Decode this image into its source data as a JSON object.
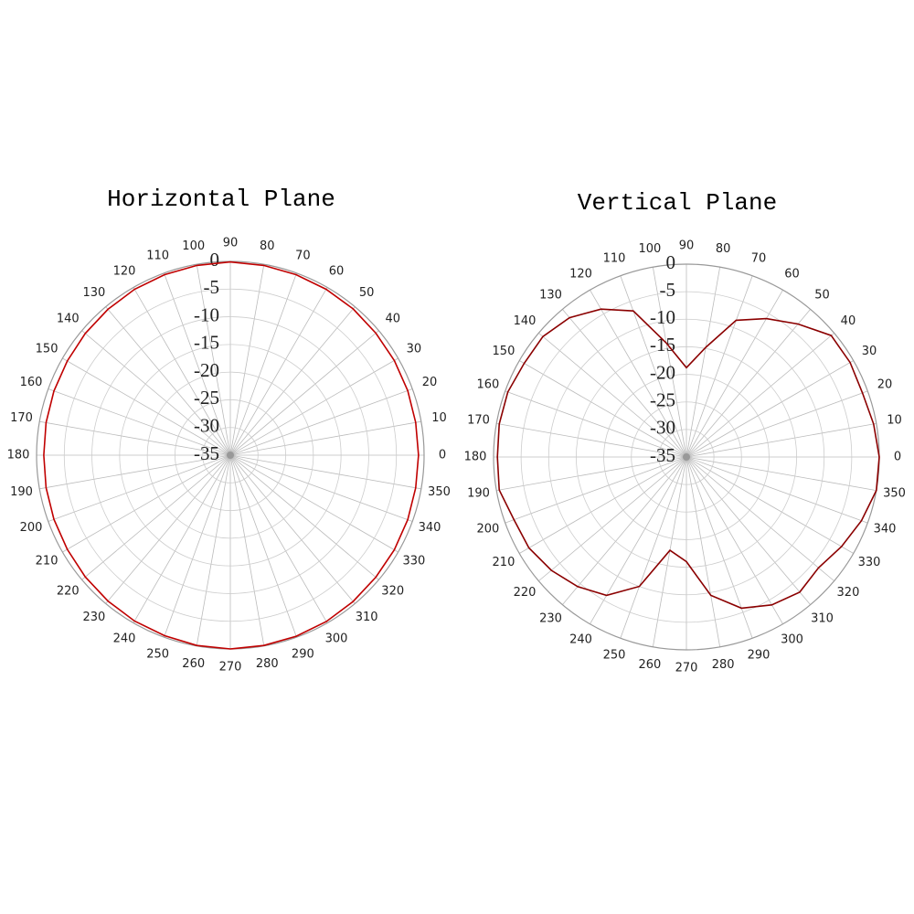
{
  "chart_data": [
    {
      "type": "polar",
      "title": "Horizontal Plane",
      "theta": [
        0,
        10,
        20,
        30,
        40,
        50,
        60,
        70,
        80,
        90,
        100,
        110,
        120,
        130,
        140,
        150,
        160,
        170,
        180,
        190,
        200,
        210,
        220,
        230,
        240,
        250,
        260,
        270,
        280,
        290,
        300,
        310,
        320,
        330,
        340,
        350
      ],
      "values": [
        -1,
        -1,
        -0.9,
        -0.8,
        -0.7,
        -0.5,
        -0.4,
        -0.3,
        -0.2,
        -0.1,
        -0.2,
        -0.3,
        -0.4,
        -0.6,
        -0.8,
        -1,
        -1.1,
        -1.2,
        -1.3,
        -1.2,
        -1.1,
        -1,
        -0.8,
        -0.6,
        -0.4,
        -0.3,
        -0.1,
        0,
        -0.1,
        -0.2,
        -0.3,
        -0.5,
        -0.7,
        -0.8,
        -0.9,
        -1
      ],
      "color": "#c00000",
      "rlim": [
        -35,
        0
      ],
      "rticks": [
        0,
        -5,
        -10,
        -15,
        -20,
        -25,
        -30,
        -35
      ],
      "thetaticks": [
        0,
        10,
        20,
        30,
        40,
        50,
        60,
        70,
        80,
        90,
        100,
        110,
        120,
        130,
        140,
        150,
        160,
        170,
        180,
        190,
        200,
        210,
        220,
        230,
        240,
        250,
        260,
        270,
        280,
        290,
        300,
        310,
        320,
        330,
        340,
        350
      ],
      "grid": true
    },
    {
      "type": "polar",
      "title": "Vertical Plane",
      "theta": [
        0,
        10,
        20,
        30,
        40,
        50,
        60,
        70,
        80,
        90,
        100,
        110,
        120,
        130,
        140,
        150,
        160,
        170,
        180,
        190,
        200,
        210,
        220,
        230,
        240,
        250,
        260,
        270,
        280,
        290,
        300,
        310,
        320,
        330,
        340,
        350
      ],
      "values": [
        0,
        -0.5,
        -1,
        -0.7,
        -0.7,
        -3.5,
        -6,
        -8.6,
        -14.8,
        -18.8,
        -14,
        -6.8,
        -4,
        -2,
        -1,
        -1,
        -0.5,
        -0.5,
        -0.7,
        -0.5,
        -1.7,
        -2,
        -3,
        -4.3,
        -6,
        -10,
        -17.8,
        -16,
        -9.5,
        -5.8,
        -4,
        -3,
        -3.7,
        -2.5,
        -1.2,
        0
      ],
      "color": "#8b0000",
      "rlim": [
        -35,
        0
      ],
      "rticks": [
        0,
        -5,
        -10,
        -15,
        -20,
        -25,
        -30,
        -35
      ],
      "thetaticks": [
        0,
        10,
        20,
        30,
        40,
        50,
        60,
        70,
        80,
        90,
        100,
        110,
        120,
        130,
        140,
        150,
        160,
        170,
        180,
        190,
        200,
        210,
        220,
        230,
        240,
        250,
        260,
        270,
        280,
        290,
        300,
        310,
        320,
        330,
        340,
        350
      ],
      "grid": true
    }
  ]
}
